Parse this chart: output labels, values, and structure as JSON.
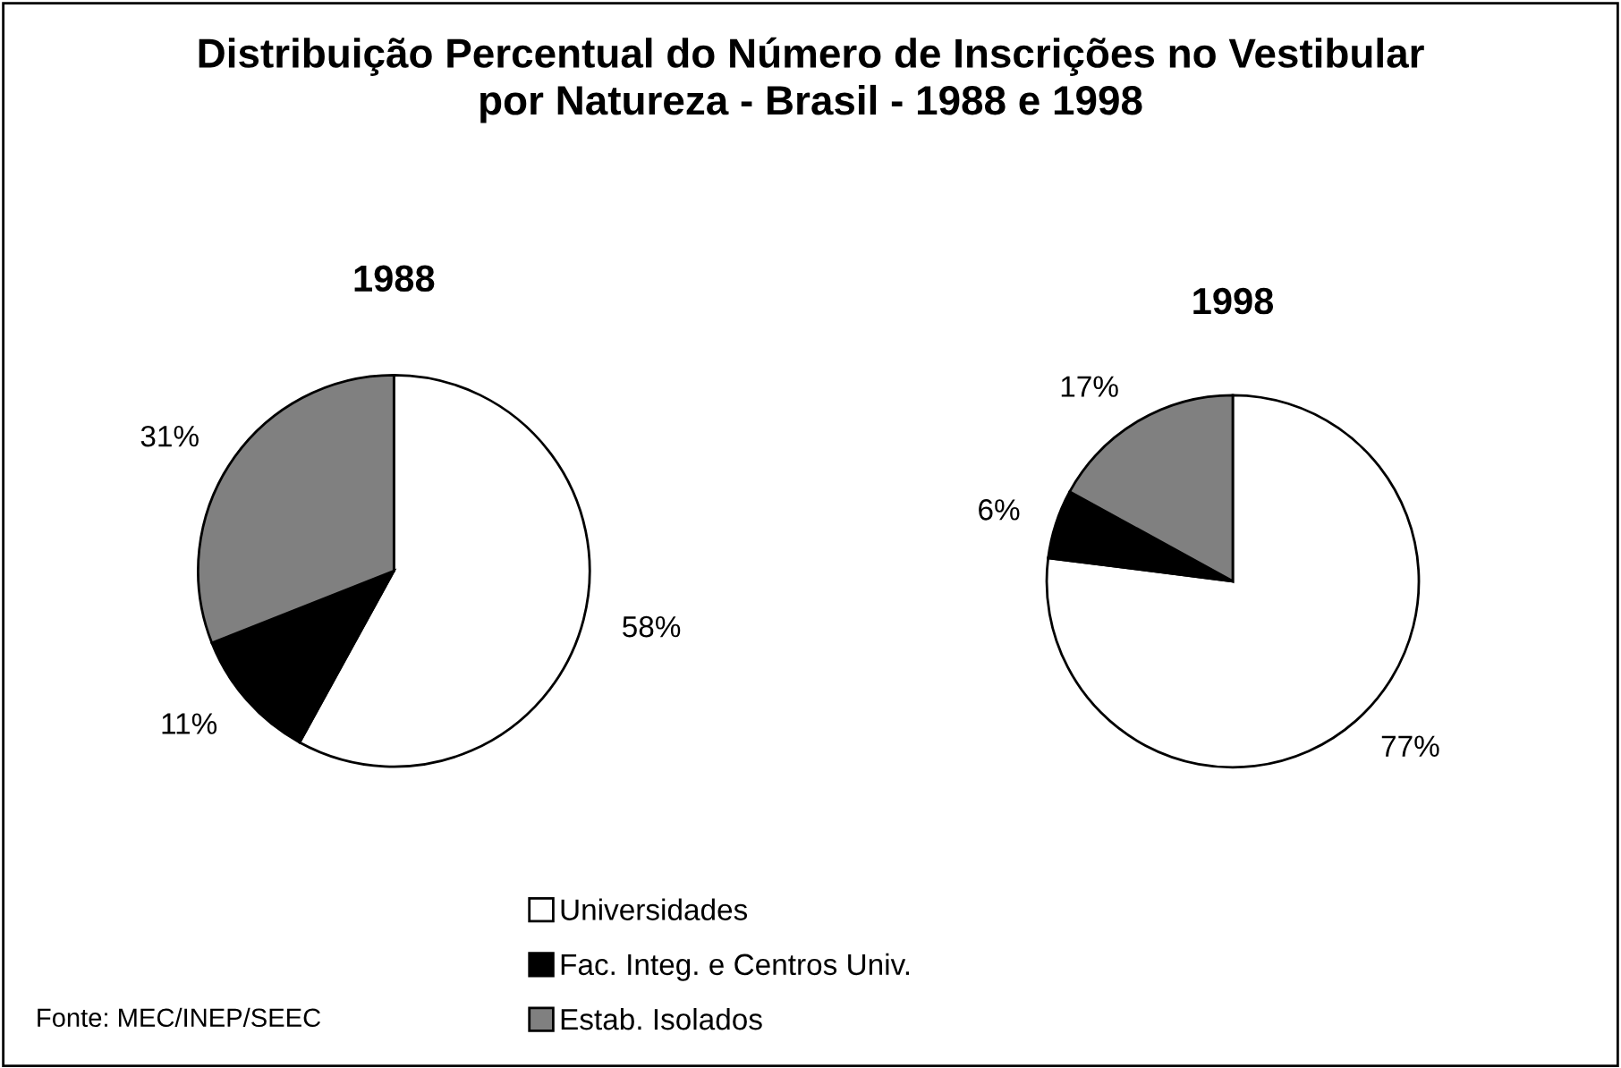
{
  "chart_data": [
    {
      "type": "pie",
      "title": "1988",
      "categories": [
        "Universidades",
        "Fac. Integ. e Centros Univ.",
        "Estab. Isolados"
      ],
      "values": [
        58,
        11,
        31
      ],
      "value_labels": [
        "58%",
        "11%",
        "31%"
      ],
      "colors": [
        "#ffffff",
        "#000000",
        "#808080"
      ],
      "legend": "bottom",
      "annotations": [
        "Distribuição Percentual do Número de Inscrições no Vestibular\npor Natureza - Brasil - 1988 e 1998",
        "Fonte: MEC/INEP/SEEC"
      ]
    },
    {
      "type": "pie",
      "title": "1998",
      "categories": [
        null,
        null,
        null
      ],
      "values": [
        77,
        6,
        17
      ],
      "value_labels": [
        "77%",
        "6%",
        "17%"
      ],
      "colors": [
        "#ffffff",
        "#000000",
        "#808080"
      ]
    }
  ]
}
